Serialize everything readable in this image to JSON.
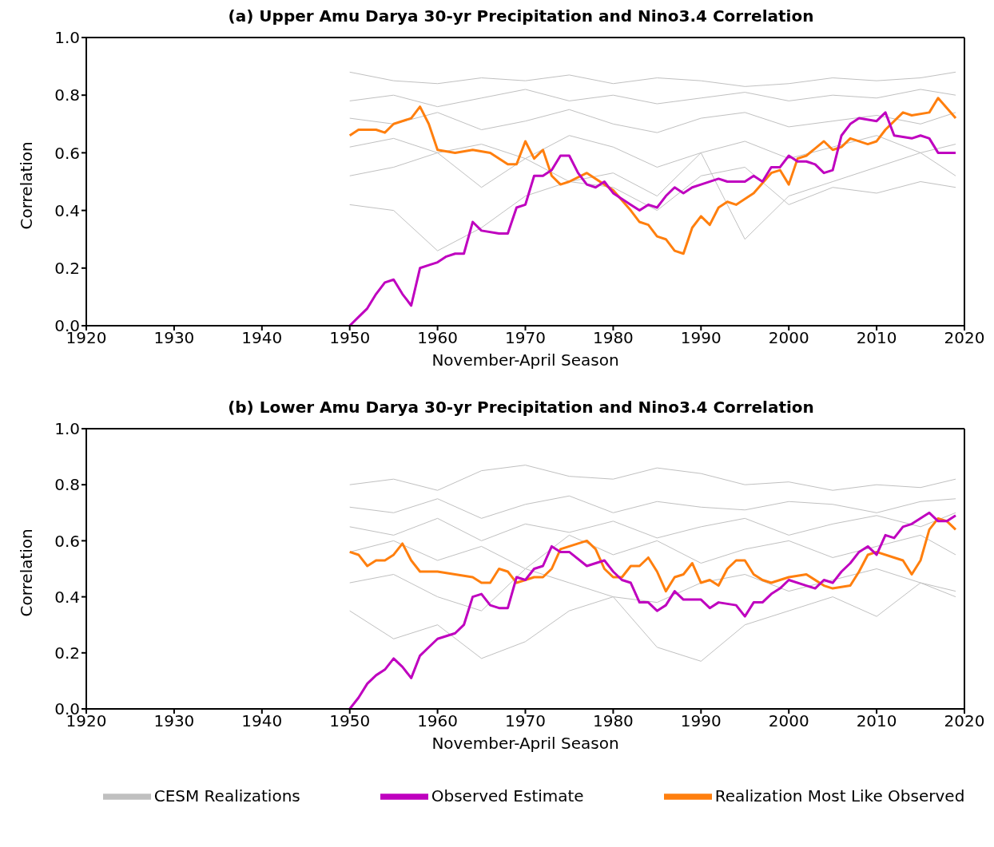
{
  "chart_data": [
    {
      "type": "line",
      "title": "(a) Upper Amu Darya 30-yr Precipitation and Nino3.4 Correlation",
      "xlabel": "November-April Season",
      "ylabel": "Correlation",
      "xlim": [
        1920,
        2020
      ],
      "xticks": [
        1920,
        1930,
        1940,
        1950,
        1960,
        1970,
        1980,
        1990,
        2000,
        2010,
        2020
      ],
      "ylim": [
        0,
        1
      ],
      "yticks": [
        {
          "value": 0,
          "label": "0.0"
        },
        {
          "value": 0.2,
          "label": "0.2"
        },
        {
          "value": 0.4,
          "label": "0.4"
        },
        {
          "value": 0.6,
          "label": "0.6"
        },
        {
          "value": 0.8,
          "label": "0.8"
        },
        {
          "value": 1,
          "label": "1.0"
        }
      ],
      "series": [
        {
          "color": "#c0c0c0",
          "x": [
            1950,
            1955,
            1960,
            1965,
            1970,
            1975,
            1980,
            1985,
            1990,
            1995,
            2000,
            2005,
            2010,
            2015,
            2019
          ],
          "values": [
            0.88,
            0.85,
            0.84,
            0.86,
            0.85,
            0.87,
            0.84,
            0.86,
            0.85,
            0.83,
            0.84,
            0.86,
            0.85,
            0.86,
            0.88
          ]
        },
        {
          "color": "#c0c0c0",
          "x": [
            1950,
            1955,
            1960,
            1965,
            1970,
            1975,
            1980,
            1985,
            1990,
            1995,
            2000,
            2005,
            2010,
            2015,
            2019
          ],
          "values": [
            0.78,
            0.8,
            0.76,
            0.79,
            0.82,
            0.78,
            0.8,
            0.77,
            0.79,
            0.81,
            0.78,
            0.8,
            0.79,
            0.82,
            0.8
          ]
        },
        {
          "color": "#c0c0c0",
          "x": [
            1950,
            1955,
            1960,
            1965,
            1970,
            1975,
            1980,
            1985,
            1990,
            1995,
            2000,
            2005,
            2010,
            2015,
            2019
          ],
          "values": [
            0.72,
            0.7,
            0.74,
            0.68,
            0.71,
            0.75,
            0.7,
            0.67,
            0.72,
            0.74,
            0.69,
            0.71,
            0.73,
            0.7,
            0.74
          ]
        },
        {
          "color": "#c0c0c0",
          "x": [
            1950,
            1955,
            1960,
            1965,
            1970,
            1975,
            1980,
            1985,
            1990,
            1995,
            2000,
            2005,
            2010,
            2015,
            2019
          ],
          "values": [
            0.62,
            0.65,
            0.6,
            0.63,
            0.58,
            0.66,
            0.62,
            0.55,
            0.6,
            0.64,
            0.58,
            0.62,
            0.66,
            0.6,
            0.63
          ]
        },
        {
          "color": "#c0c0c0",
          "x": [
            1950,
            1955,
            1960,
            1965,
            1970,
            1975,
            1980,
            1985,
            1990,
            1995,
            2000,
            2005,
            2010,
            2015,
            2019
          ],
          "values": [
            0.52,
            0.55,
            0.6,
            0.48,
            0.58,
            0.5,
            0.53,
            0.45,
            0.6,
            0.3,
            0.45,
            0.5,
            0.55,
            0.6,
            0.52
          ]
        },
        {
          "color": "#c0c0c0",
          "x": [
            1950,
            1955,
            1960,
            1965,
            1970,
            1975,
            1980,
            1985,
            1990,
            1995,
            2000,
            2005,
            2010,
            2015,
            2019
          ],
          "values": [
            0.42,
            0.4,
            0.26,
            0.34,
            0.45,
            0.5,
            0.48,
            0.4,
            0.52,
            0.55,
            0.42,
            0.48,
            0.46,
            0.5,
            0.48
          ]
        },
        {
          "color": "#ff7f0e",
          "x": [
            1950,
            1951,
            1953,
            1954,
            1955,
            1957,
            1958,
            1959,
            1960,
            1962,
            1964,
            1966,
            1968,
            1969,
            1970,
            1971,
            1972,
            1973,
            1974,
            1975,
            1977,
            1980,
            1982,
            1983,
            1984,
            1985,
            1986,
            1987,
            1988,
            1989,
            1990,
            1991,
            1992,
            1993,
            1994,
            1996,
            1998,
            1999,
            2000,
            2001,
            2002,
            2004,
            2005,
            2006,
            2007,
            2009,
            2010,
            2011,
            2013,
            2014,
            2016,
            2017,
            2019
          ],
          "values": [
            0.66,
            0.68,
            0.68,
            0.67,
            0.7,
            0.72,
            0.76,
            0.7,
            0.61,
            0.6,
            0.61,
            0.6,
            0.56,
            0.56,
            0.64,
            0.58,
            0.61,
            0.52,
            0.49,
            0.5,
            0.53,
            0.47,
            0.4,
            0.36,
            0.35,
            0.31,
            0.3,
            0.26,
            0.25,
            0.34,
            0.38,
            0.35,
            0.41,
            0.43,
            0.42,
            0.46,
            0.53,
            0.54,
            0.49,
            0.58,
            0.59,
            0.64,
            0.61,
            0.62,
            0.65,
            0.63,
            0.64,
            0.68,
            0.74,
            0.73,
            0.74,
            0.79,
            0.72
          ]
        },
        {
          "color": "#bf00bf",
          "x": [
            1950,
            1951,
            1952,
            1953,
            1954,
            1955,
            1956,
            1957,
            1958,
            1959,
            1960,
            1961,
            1962,
            1963,
            1964,
            1965,
            1967,
            1968,
            1969,
            1970,
            1971,
            1972,
            1973,
            1974,
            1975,
            1976,
            1977,
            1978,
            1979,
            1980,
            1981,
            1982,
            1983,
            1984,
            1985,
            1986,
            1987,
            1988,
            1989,
            1990,
            1992,
            1993,
            1995,
            1996,
            1997,
            1998,
            1999,
            2000,
            2001,
            2002,
            2003,
            2004,
            2005,
            2006,
            2007,
            2008,
            2010,
            2011,
            2012,
            2014,
            2015,
            2016,
            2017,
            2019
          ],
          "values": [
            0,
            0.03,
            0.06,
            0.11,
            0.15,
            0.16,
            0.11,
            0.07,
            0.2,
            0.21,
            0.22,
            0.24,
            0.25,
            0.25,
            0.36,
            0.33,
            0.32,
            0.32,
            0.41,
            0.42,
            0.52,
            0.52,
            0.54,
            0.59,
            0.59,
            0.53,
            0.49,
            0.48,
            0.5,
            0.46,
            0.44,
            0.42,
            0.4,
            0.42,
            0.41,
            0.45,
            0.48,
            0.46,
            0.48,
            0.49,
            0.51,
            0.5,
            0.5,
            0.52,
            0.5,
            0.55,
            0.55,
            0.59,
            0.57,
            0.57,
            0.56,
            0.53,
            0.54,
            0.66,
            0.7,
            0.72,
            0.71,
            0.74,
            0.66,
            0.65,
            0.66,
            0.65,
            0.6,
            0.6
          ]
        }
      ]
    },
    {
      "type": "line",
      "title": "(b) Lower Amu Darya 30-yr Precipitation and Nino3.4 Correlation",
      "xlabel": "November-April Season",
      "ylabel": "Correlation",
      "xlim": [
        1920,
        2020
      ],
      "xticks": [
        1920,
        1930,
        1940,
        1950,
        1960,
        1970,
        1980,
        1990,
        2000,
        2010,
        2020
      ],
      "ylim": [
        0,
        1
      ],
      "yticks": [
        {
          "value": 0,
          "label": "0.0"
        },
        {
          "value": 0.2,
          "label": "0.2"
        },
        {
          "value": 0.4,
          "label": "0.4"
        },
        {
          "value": 0.6,
          "label": "0.6"
        },
        {
          "value": 0.8,
          "label": "0.8"
        },
        {
          "value": 1,
          "label": "1.0"
        }
      ],
      "legend": "bottom",
      "series": [
        {
          "name": "CESM Realizations",
          "color": "#c0c0c0",
          "x": [
            1950,
            1955,
            1960,
            1965,
            1970,
            1975,
            1980,
            1985,
            1990,
            1995,
            2000,
            2005,
            2010,
            2015,
            2019
          ],
          "values": [
            0.8,
            0.82,
            0.78,
            0.85,
            0.87,
            0.83,
            0.82,
            0.86,
            0.84,
            0.8,
            0.81,
            0.78,
            0.8,
            0.79,
            0.82
          ]
        },
        {
          "color": "#c0c0c0",
          "x": [
            1950,
            1955,
            1960,
            1965,
            1970,
            1975,
            1980,
            1985,
            1990,
            1995,
            2000,
            2005,
            2010,
            2015,
            2019
          ],
          "values": [
            0.72,
            0.7,
            0.75,
            0.68,
            0.73,
            0.76,
            0.7,
            0.74,
            0.72,
            0.71,
            0.74,
            0.73,
            0.7,
            0.74,
            0.75
          ]
        },
        {
          "color": "#c0c0c0",
          "x": [
            1950,
            1955,
            1960,
            1965,
            1970,
            1975,
            1980,
            1985,
            1990,
            1995,
            2000,
            2005,
            2010,
            2015,
            2019
          ],
          "values": [
            0.65,
            0.62,
            0.68,
            0.6,
            0.66,
            0.63,
            0.67,
            0.61,
            0.65,
            0.68,
            0.62,
            0.66,
            0.69,
            0.65,
            0.7
          ]
        },
        {
          "color": "#c0c0c0",
          "x": [
            1950,
            1955,
            1960,
            1965,
            1970,
            1975,
            1980,
            1985,
            1990,
            1995,
            2000,
            2005,
            2010,
            2015,
            2019
          ],
          "values": [
            0.56,
            0.6,
            0.53,
            0.58,
            0.5,
            0.62,
            0.55,
            0.6,
            0.52,
            0.57,
            0.6,
            0.54,
            0.58,
            0.62,
            0.55
          ]
        },
        {
          "color": "#c0c0c0",
          "x": [
            1950,
            1955,
            1960,
            1965,
            1970,
            1975,
            1980,
            1985,
            1990,
            1995,
            2000,
            2005,
            2010,
            2015,
            2019
          ],
          "values": [
            0.45,
            0.48,
            0.4,
            0.35,
            0.5,
            0.45,
            0.4,
            0.38,
            0.45,
            0.48,
            0.42,
            0.46,
            0.5,
            0.45,
            0.42
          ]
        },
        {
          "color": "#c0c0c0",
          "x": [
            1950,
            1955,
            1960,
            1965,
            1970,
            1975,
            1980,
            1985,
            1990,
            1995,
            2000,
            2005,
            2010,
            2015,
            2019
          ],
          "values": [
            0.35,
            0.25,
            0.3,
            0.18,
            0.24,
            0.35,
            0.4,
            0.22,
            0.17,
            0.3,
            0.35,
            0.4,
            0.33,
            0.45,
            0.4
          ]
        },
        {
          "name": "Realization Most Like Observed",
          "color": "#ff7f0e",
          "x": [
            1950,
            1951,
            1952,
            1953,
            1954,
            1955,
            1956,
            1957,
            1958,
            1959,
            1960,
            1962,
            1964,
            1965,
            1966,
            1967,
            1968,
            1969,
            1970,
            1971,
            1972,
            1973,
            1974,
            1976,
            1977,
            1978,
            1979,
            1980,
            1981,
            1982,
            1983,
            1984,
            1985,
            1986,
            1987,
            1988,
            1989,
            1990,
            1991,
            1992,
            1993,
            1994,
            1995,
            1996,
            1997,
            1998,
            2000,
            2002,
            2004,
            2005,
            2007,
            2008,
            2009,
            2010,
            2012,
            2013,
            2014,
            2015,
            2016,
            2017,
            2018,
            2019
          ],
          "values": [
            0.56,
            0.55,
            0.51,
            0.53,
            0.53,
            0.55,
            0.59,
            0.53,
            0.49,
            0.49,
            0.49,
            0.48,
            0.47,
            0.45,
            0.45,
            0.5,
            0.49,
            0.45,
            0.46,
            0.47,
            0.47,
            0.5,
            0.57,
            0.59,
            0.6,
            0.57,
            0.5,
            0.47,
            0.47,
            0.51,
            0.51,
            0.54,
            0.49,
            0.42,
            0.47,
            0.48,
            0.52,
            0.45,
            0.46,
            0.44,
            0.5,
            0.53,
            0.53,
            0.48,
            0.46,
            0.45,
            0.47,
            0.48,
            0.44,
            0.43,
            0.44,
            0.49,
            0.55,
            0.56,
            0.54,
            0.53,
            0.48,
            0.53,
            0.64,
            0.68,
            0.67,
            0.64
          ]
        },
        {
          "name": "Observed Estimate",
          "color": "#bf00bf",
          "x": [
            1950,
            1951,
            1952,
            1953,
            1954,
            1955,
            1956,
            1957,
            1958,
            1959,
            1960,
            1961,
            1962,
            1963,
            1964,
            1965,
            1966,
            1967,
            1968,
            1969,
            1970,
            1971,
            1972,
            1973,
            1974,
            1975,
            1977,
            1978,
            1979,
            1980,
            1981,
            1982,
            1983,
            1984,
            1985,
            1986,
            1987,
            1988,
            1990,
            1991,
            1992,
            1994,
            1995,
            1996,
            1997,
            1998,
            1999,
            2000,
            2002,
            2003,
            2004,
            2005,
            2006,
            2007,
            2008,
            2009,
            2010,
            2011,
            2012,
            2013,
            2014,
            2015,
            2016,
            2017,
            2018,
            2019
          ],
          "values": [
            0,
            0.04,
            0.09,
            0.12,
            0.14,
            0.18,
            0.15,
            0.11,
            0.19,
            0.22,
            0.25,
            0.26,
            0.27,
            0.3,
            0.4,
            0.41,
            0.37,
            0.36,
            0.36,
            0.47,
            0.46,
            0.5,
            0.51,
            0.58,
            0.56,
            0.56,
            0.51,
            0.52,
            0.53,
            0.49,
            0.46,
            0.45,
            0.38,
            0.38,
            0.35,
            0.37,
            0.42,
            0.39,
            0.39,
            0.36,
            0.38,
            0.37,
            0.33,
            0.38,
            0.38,
            0.41,
            0.43,
            0.46,
            0.44,
            0.43,
            0.46,
            0.45,
            0.49,
            0.52,
            0.56,
            0.58,
            0.55,
            0.62,
            0.61,
            0.65,
            0.66,
            0.68,
            0.7,
            0.67,
            0.67,
            0.69
          ]
        }
      ]
    }
  ]
}
